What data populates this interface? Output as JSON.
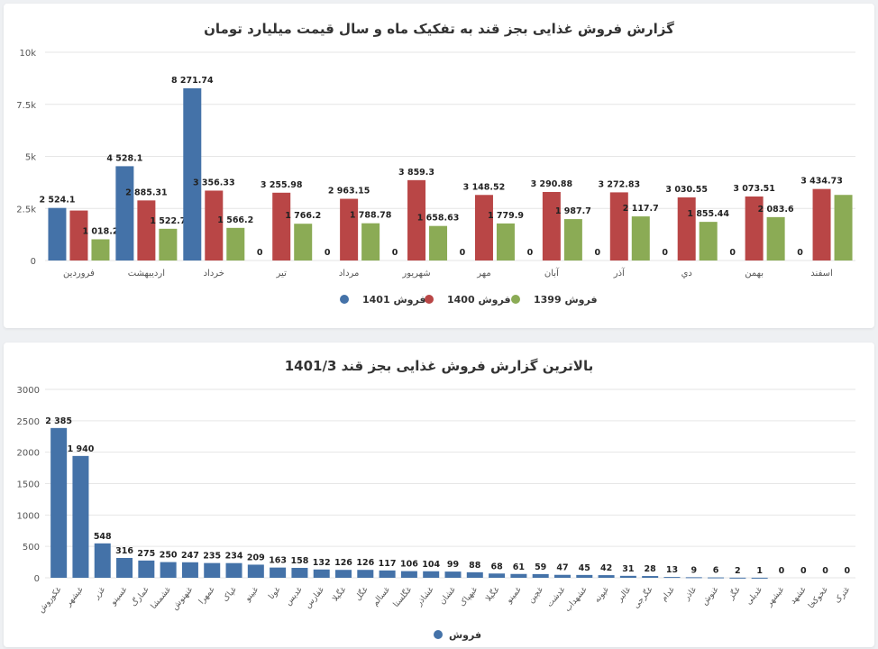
{
  "chart_data": [
    {
      "type": "bar",
      "title": "گزارش فروش غذایی بجز قند به تفکیک ماه و سال قیمت میلیارد تومان",
      "categories": [
        "فروردین",
        "اردیبهشت",
        "خرداد",
        "تیر",
        "مرداد",
        "شهریور",
        "مهر",
        "آبان",
        "آذر",
        "دي",
        "بهمن",
        "اسفند"
      ],
      "ylim": [
        0,
        10000
      ],
      "yticks": [
        0,
        2500,
        5000,
        7500,
        10000
      ],
      "ytick_labels": [
        "0",
        "2.5k",
        "5k",
        "7.5k",
        "10k"
      ],
      "legend_position": "bottom",
      "series": [
        {
          "name": "فروش 1401",
          "color": "#4472a8",
          "values": [
            2524.1,
            4528.1,
            8271.74,
            0,
            0,
            0,
            0,
            0,
            0,
            0,
            0,
            0
          ],
          "labels": [
            "2 524.1",
            "4 528.1",
            "8 271.74",
            "0",
            "0",
            "0",
            "0",
            "0",
            "0",
            "0",
            "0",
            "0"
          ]
        },
        {
          "name": "فروش 1400",
          "color": "#b94646",
          "values": [
            2400,
            2885.31,
            3356.33,
            3255.98,
            2963.15,
            3859.3,
            3148.52,
            3290.88,
            3272.83,
            3030.55,
            3073.51,
            3434.73
          ],
          "labels": [
            "",
            "2 885.31",
            "3 356.33",
            "3 255.98",
            "2 963.15",
            "3 859.3",
            "3 148.52",
            "3 290.88",
            "3 272.83",
            "3 030.55",
            "3 073.51",
            "3 434.73"
          ]
        },
        {
          "name": "فروش 1399",
          "color": "#8bab55",
          "values": [
            1018.2,
            1522.7,
            1566.2,
            1766.2,
            1788.78,
            1658.63,
            1779.9,
            1987.7,
            2117.7,
            1855.44,
            2083.6,
            3150
          ],
          "labels": [
            "1 018.2",
            "1 522.7",
            "1 566.2",
            "1 766.2",
            "1 788.78",
            "1 658.63",
            "1 779.9",
            "1 987.7",
            "2 117.7",
            "1 855.44",
            "2 083.6",
            ""
          ]
        }
      ]
    },
    {
      "type": "bar",
      "title": "بالاترین گزارش فروش غذایی بجز قند 1401/3",
      "categories": [
        "غکوروش",
        "غبشهر",
        "غزر",
        "غسینو",
        "غمارگ",
        "غشمشا",
        "غنهنوش",
        "غمهرا",
        "غپاک",
        "غبینو",
        "غونا",
        "غدیس",
        "غفارس",
        "غگیلا",
        "غگل",
        "غسالم",
        "غگلستا",
        "غشاذر",
        "غشان",
        "غبهپاک",
        "غگیلا",
        "غمینو",
        "غچین",
        "غدشت",
        "غشهداب",
        "غپونه",
        "غالبر",
        "غگرجی",
        "غدام",
        "غاذر",
        "غنوش",
        "غگز",
        "غدبلی",
        "غبشهر",
        "غشهد",
        "غخوکخا",
        "غترک"
      ],
      "values": [
        2385,
        1940,
        548,
        316,
        275,
        250,
        247,
        235,
        234,
        209,
        163,
        158,
        132,
        126,
        126,
        117,
        106,
        104,
        99,
        88,
        68,
        61,
        59,
        47,
        45,
        42,
        31,
        28,
        13,
        9,
        6,
        2,
        1,
        0,
        0,
        0,
        0
      ],
      "labels": [
        "2 385",
        "1 940",
        "548",
        "316",
        "275",
        "250",
        "247",
        "235",
        "234",
        "209",
        "163",
        "158",
        "132",
        "126",
        "126",
        "117",
        "106",
        "104",
        "99",
        "88",
        "68",
        "61",
        "59",
        "47",
        "45",
        "42",
        "31",
        "28",
        "13",
        "9",
        "6",
        "2",
        "1",
        "0",
        "0",
        "0",
        "0"
      ],
      "ylim": [
        0,
        3000
      ],
      "yticks": [
        0,
        500,
        1000,
        1500,
        2000,
        2500,
        3000
      ],
      "ytick_labels": [
        "0",
        "500",
        "1000",
        "1500",
        "2000",
        "2500",
        "3000"
      ],
      "legend_position": "bottom",
      "series": [
        {
          "name": "فروش",
          "color": "#4472a8"
        }
      ]
    }
  ]
}
